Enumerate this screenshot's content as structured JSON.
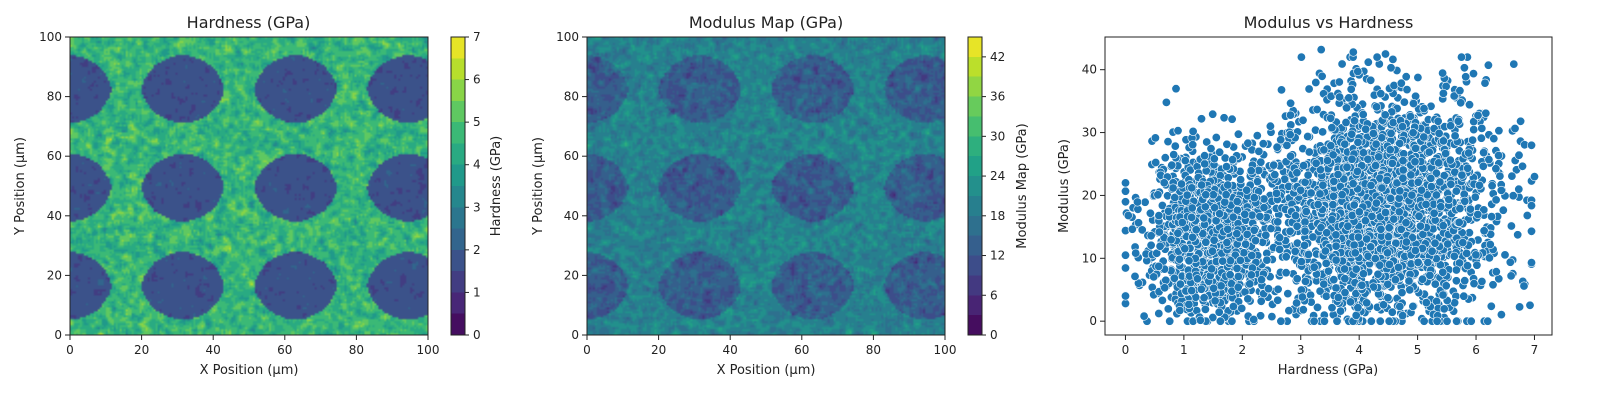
{
  "figure": {
    "background": "#ffffff"
  },
  "chart_data": [
    {
      "type": "heatmap",
      "title": "Hardness (GPa)",
      "xlabel": "X Position (μm)",
      "ylabel": "Y Position (μm)",
      "xlim": [
        0,
        100
      ],
      "ylim": [
        0,
        100
      ],
      "xticks": [
        0,
        20,
        40,
        60,
        80,
        100
      ],
      "yticks": [
        0,
        20,
        40,
        60,
        80,
        100
      ],
      "colormap": "viridis",
      "colorbar": {
        "label": "Hardness (GPa)",
        "range": [
          0,
          7
        ],
        "ticks": [
          0,
          1,
          2,
          3,
          4,
          5,
          6,
          7
        ],
        "levels": 14
      },
      "pattern": {
        "matrix_hardness_mean": 4.6,
        "matrix_noise": 0.55,
        "inclusion_hardness": 1.7,
        "inclusion_centers_x": [
          0,
          31.5,
          63,
          94.5
        ],
        "inclusion_centers_y": [
          16.5,
          49.5,
          82.5
        ],
        "inclusion_halfwidth": 11.5,
        "inclusion_shape": "rounded-diamond"
      }
    },
    {
      "type": "heatmap",
      "title": "Modulus Map (GPa)",
      "xlabel": "X Position (μm)",
      "ylabel": "Y Position (μm)",
      "xlim": [
        0,
        100
      ],
      "ylim": [
        0,
        100
      ],
      "xticks": [
        0,
        20,
        40,
        60,
        80,
        100
      ],
      "yticks": [
        0,
        20,
        40,
        60,
        80,
        100
      ],
      "colormap": "viridis",
      "colorbar": {
        "label": "Modulus Map (GPa)",
        "range": [
          0,
          45
        ],
        "ticks": [
          0,
          6,
          12,
          18,
          24,
          30,
          36,
          42
        ],
        "levels": 15
      },
      "pattern": {
        "mean_in_matrix": 20,
        "mean_in_inclusions": 13,
        "noise": 5.5
      }
    },
    {
      "type": "scatter",
      "title": "Modulus vs Hardness",
      "xlabel": "Hardness (GPa)",
      "ylabel": "Modulus (GPa)",
      "xlim": [
        -0.35,
        7.3
      ],
      "ylim": [
        -2.2,
        45.2
      ],
      "xticks": [
        0,
        1,
        2,
        3,
        4,
        5,
        6,
        7
      ],
      "yticks": [
        0,
        10,
        20,
        30,
        40
      ],
      "marker_color": "#1f77b4",
      "marker_edge": "#ffffff",
      "clusters": [
        {
          "x_center": 1.45,
          "x_spread": 0.55,
          "y_center": 14.5,
          "y_spread": 6.5,
          "n": 1200
        },
        {
          "x_center": 4.4,
          "x_spread": 0.95,
          "y_center": 18.5,
          "y_spread": 8.5,
          "n": 2600
        }
      ],
      "highlighted_points": [
        {
          "x": 0.0,
          "y": 4.0
        },
        {
          "x": 0.32,
          "y": 0.8
        },
        {
          "x": 0.7,
          "y": 34.8
        },
        {
          "x": 3.35,
          "y": 43.2
        },
        {
          "x": 3.9,
          "y": 42.8
        },
        {
          "x": 4.45,
          "y": 42.5
        },
        {
          "x": 5.8,
          "y": 40.3
        },
        {
          "x": 6.6,
          "y": 7.2
        },
        {
          "x": 6.82,
          "y": 5.6
        },
        {
          "x": 6.95,
          "y": 14.3
        },
        {
          "x": 7.0,
          "y": 23.0
        },
        {
          "x": 6.2,
          "y": 0.0
        }
      ]
    }
  ]
}
